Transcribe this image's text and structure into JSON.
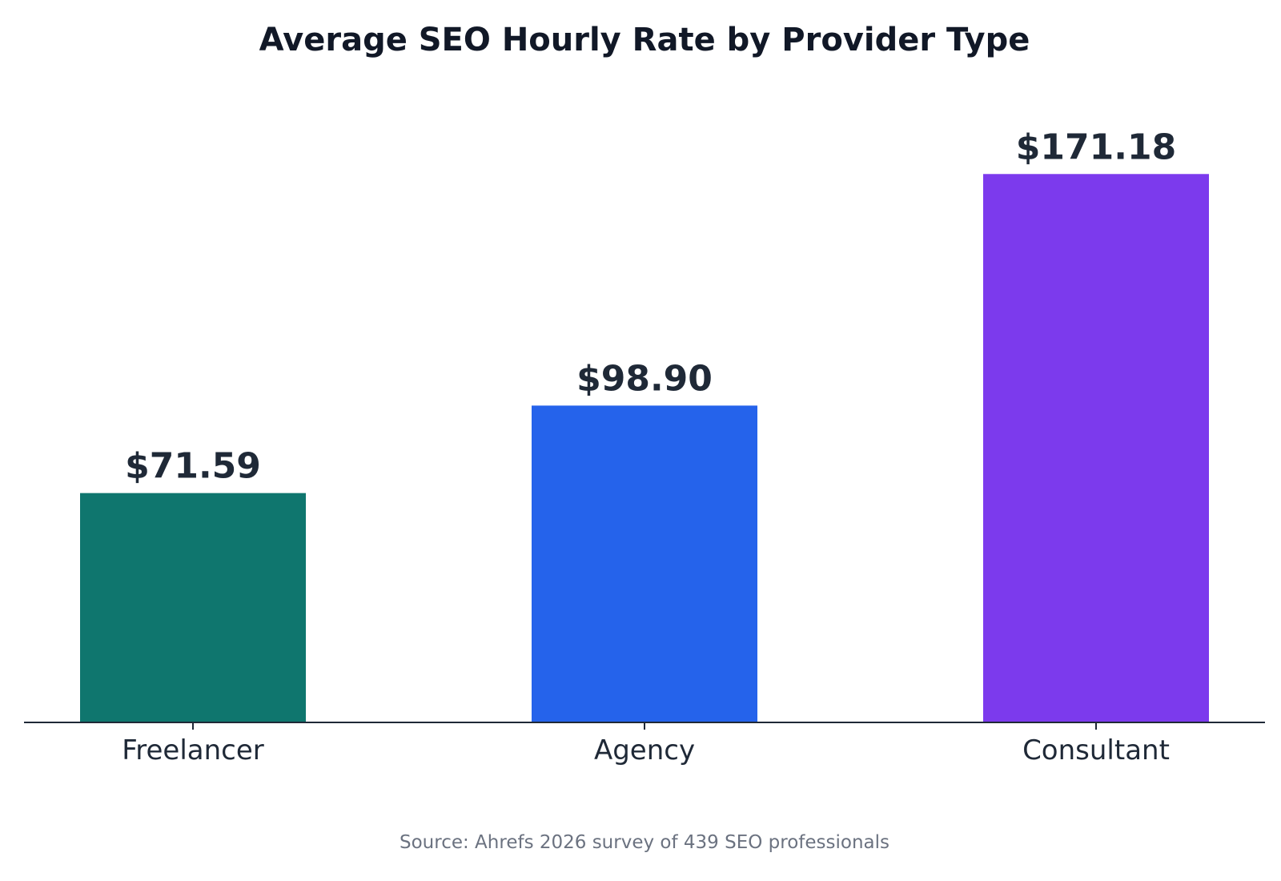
{
  "chart_data": {
    "type": "bar",
    "title": "Average SEO Hourly Rate by Provider Type",
    "xlabel": "",
    "ylabel": "",
    "categories": [
      "Freelancer",
      "Agency",
      "Consultant"
    ],
    "values": [
      71.59,
      98.9,
      171.18
    ],
    "value_labels": [
      "$71.59",
      "$98.90",
      "$171.18"
    ],
    "colors": [
      "#0f766e",
      "#2563eb",
      "#7c3aed"
    ],
    "ylim": [
      0,
      195
    ],
    "grid": false,
    "legend": "none",
    "source": "Source: Ahrefs 2026 survey of 439 SEO professionals"
  }
}
